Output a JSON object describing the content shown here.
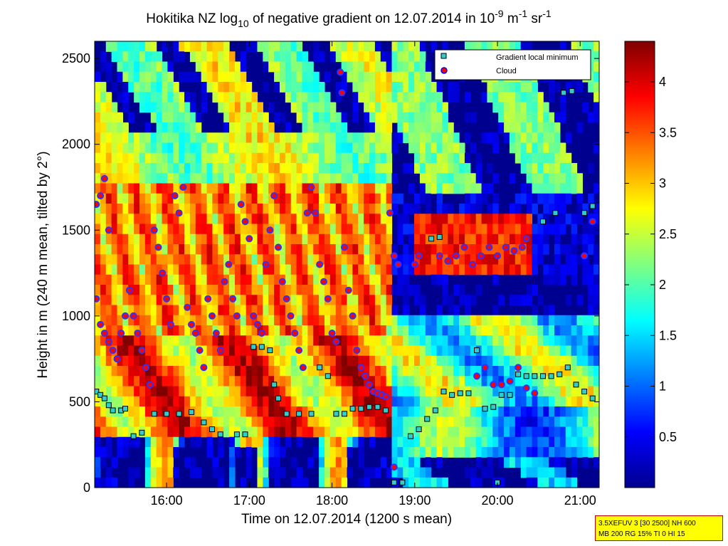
{
  "chart_data": {
    "type": "heatmap",
    "title": {
      "prefix": "Hokitika NZ log",
      "sub": "10",
      "middle": " of negative gradient on 12.07.2014 in 10",
      "sup1": "-9",
      "unit1": " m",
      "sup2": "-1",
      "unit2": " sr",
      "sup3": "-1"
    },
    "xlabel": "Time on 12.07.2014 (1200 s mean)",
    "ylabel": "Height in m (240 m mean, tilted by 2°)",
    "x_axis": {
      "range_hours": [
        15.13,
        21.23
      ],
      "ticks": [
        {
          "value": 16,
          "label": "16:00"
        },
        {
          "value": 17,
          "label": "17:00"
        },
        {
          "value": 18,
          "label": "18:00"
        },
        {
          "value": 19,
          "label": "19:00"
        },
        {
          "value": 20,
          "label": "20:00"
        },
        {
          "value": 21,
          "label": "21:00"
        }
      ]
    },
    "y_axis": {
      "range": [
        0,
        2600
      ],
      "ticks": [
        0,
        500,
        1000,
        1500,
        2000,
        2500
      ]
    },
    "colorbar": {
      "range": [
        0,
        4.4
      ],
      "ticks": [
        0.5,
        1,
        1.5,
        2,
        2.5,
        3,
        3.5,
        4
      ],
      "tick_labels": [
        "0.5",
        "1",
        "1.5",
        "2",
        "2.5",
        "3",
        "3.5",
        "4"
      ],
      "colormap": "jet"
    },
    "legend": {
      "position": "top-right",
      "entries": [
        {
          "label": "Gradient local minimum",
          "marker": "square",
          "color": "#33cccc"
        },
        {
          "label": "Cloud",
          "marker": "circle",
          "color": "#ff0000",
          "edge": "#0000ff"
        }
      ]
    },
    "series": [
      {
        "name": "Gradient local minimum",
        "points": [
          [
            15.15,
            560
          ],
          [
            15.2,
            540
          ],
          [
            15.25,
            520
          ],
          [
            15.3,
            480
          ],
          [
            15.35,
            450
          ],
          [
            15.45,
            450
          ],
          [
            15.5,
            460
          ],
          [
            15.6,
            300
          ],
          [
            15.7,
            320
          ],
          [
            15.85,
            430
          ],
          [
            16.0,
            430
          ],
          [
            16.15,
            430
          ],
          [
            16.3,
            440
          ],
          [
            16.45,
            380
          ],
          [
            16.55,
            340
          ],
          [
            16.65,
            310
          ],
          [
            16.85,
            310
          ],
          [
            16.95,
            310
          ],
          [
            17.05,
            820
          ],
          [
            17.15,
            820
          ],
          [
            17.25,
            800
          ],
          [
            17.3,
            600
          ],
          [
            17.35,
            520
          ],
          [
            17.45,
            430
          ],
          [
            17.6,
            430
          ],
          [
            17.75,
            430
          ],
          [
            17.85,
            700
          ],
          [
            17.95,
            650
          ],
          [
            18.05,
            430
          ],
          [
            18.15,
            430
          ],
          [
            18.25,
            460
          ],
          [
            18.35,
            460
          ],
          [
            18.45,
            470
          ],
          [
            18.55,
            470
          ],
          [
            18.65,
            450
          ],
          [
            18.75,
            30
          ],
          [
            18.85,
            30
          ],
          [
            18.95,
            300
          ],
          [
            19.05,
            340
          ],
          [
            19.15,
            400
          ],
          [
            19.25,
            450
          ],
          [
            19.35,
            560
          ],
          [
            19.45,
            540
          ],
          [
            19.55,
            550
          ],
          [
            19.65,
            550
          ],
          [
            19.75,
            800
          ],
          [
            19.85,
            460
          ],
          [
            19.95,
            470
          ],
          [
            20.05,
            540
          ],
          [
            20.15,
            540
          ],
          [
            20.25,
            660
          ],
          [
            20.35,
            650
          ],
          [
            20.45,
            650
          ],
          [
            20.55,
            650
          ],
          [
            20.65,
            650
          ],
          [
            20.75,
            660
          ],
          [
            20.85,
            700
          ],
          [
            20.95,
            600
          ],
          [
            21.05,
            560
          ],
          [
            21.15,
            520
          ],
          [
            19.2,
            1450
          ],
          [
            19.3,
            1460
          ],
          [
            20.8,
            2300
          ],
          [
            20.9,
            2310
          ],
          [
            21.05,
            1600
          ],
          [
            21.15,
            1640
          ],
          [
            20.0,
            30
          ],
          [
            20.55,
            1550
          ],
          [
            20.7,
            1600
          ]
        ]
      },
      {
        "name": "Cloud",
        "points": [
          [
            15.15,
            1650
          ],
          [
            15.2,
            1700
          ],
          [
            15.25,
            1800
          ],
          [
            15.3,
            1500
          ],
          [
            15.15,
            1100
          ],
          [
            15.2,
            950
          ],
          [
            15.25,
            900
          ],
          [
            15.3,
            850
          ],
          [
            15.35,
            800
          ],
          [
            15.4,
            750
          ],
          [
            15.45,
            900
          ],
          [
            15.5,
            1000
          ],
          [
            15.55,
            1150
          ],
          [
            15.6,
            1000
          ],
          [
            15.65,
            900
          ],
          [
            15.7,
            800
          ],
          [
            15.75,
            700
          ],
          [
            15.8,
            600
          ],
          [
            15.85,
            1500
          ],
          [
            15.9,
            1400
          ],
          [
            15.95,
            1250
          ],
          [
            16.0,
            1100
          ],
          [
            16.05,
            950
          ],
          [
            16.1,
            1700
          ],
          [
            16.15,
            1600
          ],
          [
            16.2,
            1750
          ],
          [
            16.25,
            1050
          ],
          [
            16.3,
            950
          ],
          [
            16.35,
            900
          ],
          [
            16.4,
            800
          ],
          [
            16.45,
            700
          ],
          [
            16.5,
            1100
          ],
          [
            16.55,
            1000
          ],
          [
            16.6,
            900
          ],
          [
            16.65,
            800
          ],
          [
            16.7,
            1200
          ],
          [
            16.75,
            1300
          ],
          [
            16.8,
            1100
          ],
          [
            16.85,
            1000
          ],
          [
            16.9,
            1650
          ],
          [
            16.95,
            1550
          ],
          [
            17.0,
            1450
          ],
          [
            17.05,
            1000
          ],
          [
            17.1,
            950
          ],
          [
            17.15,
            900
          ],
          [
            17.2,
            1300
          ],
          [
            17.25,
            1500
          ],
          [
            17.3,
            1700
          ],
          [
            17.35,
            1400
          ],
          [
            17.4,
            1200
          ],
          [
            17.45,
            1100
          ],
          [
            17.5,
            1000
          ],
          [
            17.55,
            900
          ],
          [
            17.6,
            800
          ],
          [
            17.65,
            700
          ],
          [
            17.7,
            1600
          ],
          [
            17.75,
            1750
          ],
          [
            17.8,
            1600
          ],
          [
            17.85,
            1300
          ],
          [
            17.9,
            1200
          ],
          [
            17.95,
            1100
          ],
          [
            18.0,
            900
          ],
          [
            18.05,
            850
          ],
          [
            18.1,
            2420
          ],
          [
            18.12,
            2300
          ],
          [
            18.15,
            1400
          ],
          [
            18.2,
            1150
          ],
          [
            18.25,
            1000
          ],
          [
            18.3,
            800
          ],
          [
            18.35,
            700
          ],
          [
            18.4,
            650
          ],
          [
            18.45,
            600
          ],
          [
            18.5,
            560
          ],
          [
            18.55,
            550
          ],
          [
            18.6,
            540
          ],
          [
            18.65,
            530
          ],
          [
            18.75,
            1350
          ],
          [
            18.8,
            1300
          ],
          [
            18.7,
            1600
          ],
          [
            18.75,
            120
          ],
          [
            19.0,
            1300
          ],
          [
            19.05,
            1350
          ],
          [
            19.3,
            1350
          ],
          [
            19.4,
            1320
          ],
          [
            19.5,
            1350
          ],
          [
            19.6,
            1400
          ],
          [
            19.7,
            1300
          ],
          [
            19.8,
            1350
          ],
          [
            19.9,
            1400
          ],
          [
            20.0,
            1350
          ],
          [
            20.1,
            1400
          ],
          [
            20.2,
            1380
          ],
          [
            20.3,
            1400
          ],
          [
            20.35,
            1450
          ],
          [
            19.75,
            650
          ],
          [
            19.85,
            700
          ],
          [
            19.95,
            600
          ],
          [
            20.05,
            600
          ],
          [
            20.15,
            620
          ],
          [
            20.25,
            700
          ],
          [
            20.35,
            580
          ],
          [
            20.45,
            550
          ],
          [
            21.05,
            1350
          ],
          [
            21.15,
            1550
          ]
        ]
      }
    ],
    "annotation": {
      "line1": "3.5XEFUV 3 [30 2500] NH 600",
      "line2": "MB 200 RG 15% TI 0 HI 15"
    }
  }
}
